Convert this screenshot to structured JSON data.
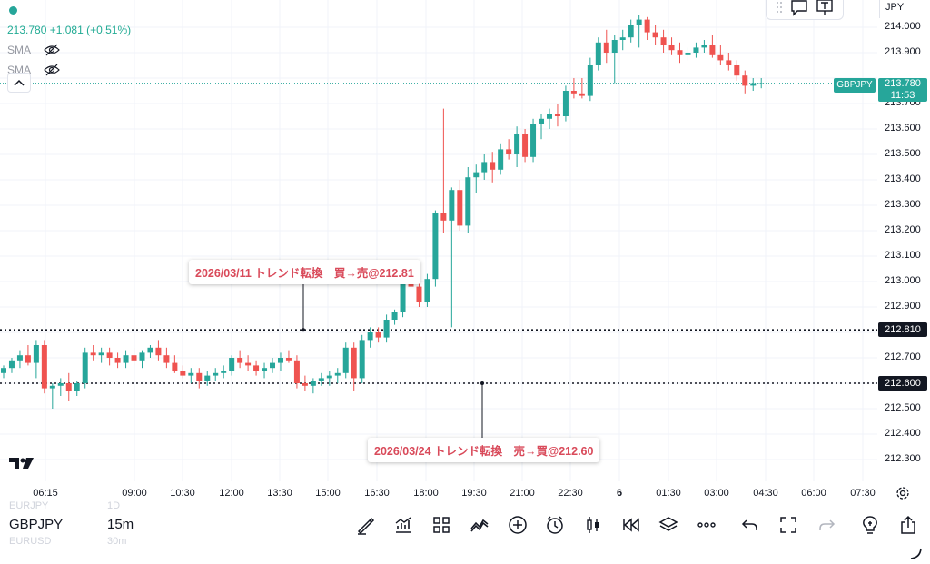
{
  "legend": {
    "price": "213.780",
    "change": "+1.081 (+0.51%)",
    "indicators": [
      {
        "label": "SMA",
        "icon": "eye-off-icon"
      },
      {
        "label": "SMA",
        "icon": "eye-off-icon"
      }
    ]
  },
  "price_axis": {
    "currency": "JPY",
    "ticks": [
      "214.000",
      "213.900",
      "213.700",
      "213.600",
      "213.500",
      "213.400",
      "213.300",
      "213.200",
      "213.100",
      "213.000",
      "212.900",
      "212.700",
      "212.500",
      "212.400",
      "212.300"
    ],
    "current_price": "213.780",
    "countdown": "11:53",
    "symbol_tag": "GBPJPY",
    "level_tags": [
      "212.810",
      "212.600"
    ]
  },
  "time_axis": {
    "ticks": [
      "06:15",
      "09:00",
      "10:30",
      "12:00",
      "13:30",
      "15:00",
      "16:30",
      "18:00",
      "19:30",
      "21:00",
      "22:30",
      "6",
      "01:30",
      "03:00",
      "04:30",
      "06:00",
      "07:30"
    ]
  },
  "annotations": [
    {
      "text": "2026/03/11 トレンド転換　買→売@212.81"
    },
    {
      "text": "2026/03/24 トレンド転換　売→買@212.60"
    }
  ],
  "bottom_bar": {
    "symbol": "GBPJPY",
    "interval": "15m",
    "ghost_above_symbol": "EURJPY",
    "ghost_above_interval": "1D",
    "ghost_below_symbol": "EURUSD",
    "ghost_below_interval": "30m",
    "tools": [
      "brush-icon",
      "indicators-icon",
      "templates-icon",
      "compare-icon",
      "add-icon",
      "alert-icon",
      "candle-type-icon",
      "replay-icon",
      "layers-icon",
      "more-icon",
      "undo-icon",
      "fullscreen-icon",
      "redo-icon",
      "idea-icon",
      "share-icon"
    ]
  },
  "colors": {
    "up": "#26a69a",
    "down": "#ef5350",
    "annotation_text": "#d94a5a"
  },
  "chart_data": {
    "type": "candlestick",
    "symbol": "GBPJPY",
    "interval": "15m",
    "ylim": [
      212.22,
      214.08
    ],
    "levels": [
      212.81,
      212.6,
      213.78
    ],
    "candles": [
      [
        212.64,
        212.67,
        212.62,
        212.66
      ],
      [
        212.66,
        212.7,
        212.64,
        212.69
      ],
      [
        212.69,
        212.73,
        212.66,
        212.71
      ],
      [
        212.71,
        212.75,
        212.67,
        212.68
      ],
      [
        212.68,
        212.77,
        212.62,
        212.75
      ],
      [
        212.75,
        212.77,
        212.56,
        212.58
      ],
      [
        212.58,
        212.6,
        212.5,
        212.59
      ],
      [
        212.59,
        212.62,
        212.55,
        212.6
      ],
      [
        212.6,
        212.64,
        212.53,
        212.57
      ],
      [
        212.57,
        212.61,
        212.55,
        212.6
      ],
      [
        212.6,
        212.74,
        212.58,
        212.72
      ],
      [
        212.72,
        212.75,
        212.69,
        212.71
      ],
      [
        212.71,
        212.74,
        212.68,
        212.72
      ],
      [
        212.72,
        212.74,
        212.67,
        212.7
      ],
      [
        212.7,
        212.72,
        212.66,
        212.68
      ],
      [
        212.68,
        212.73,
        212.66,
        212.71
      ],
      [
        212.71,
        212.74,
        212.67,
        212.69
      ],
      [
        212.69,
        212.73,
        212.66,
        212.72
      ],
      [
        212.72,
        212.75,
        212.7,
        212.74
      ],
      [
        212.74,
        212.77,
        212.69,
        212.71
      ],
      [
        212.71,
        212.74,
        212.66,
        212.68
      ],
      [
        212.68,
        212.71,
        212.64,
        212.65
      ],
      [
        212.65,
        212.67,
        212.62,
        212.63
      ],
      [
        212.63,
        212.66,
        212.6,
        212.64
      ],
      [
        212.64,
        212.66,
        212.58,
        212.61
      ],
      [
        212.61,
        212.65,
        212.59,
        212.63
      ],
      [
        212.63,
        212.66,
        212.61,
        212.64
      ],
      [
        212.64,
        212.67,
        212.62,
        212.65
      ],
      [
        212.65,
        212.71,
        212.63,
        212.7
      ],
      [
        212.7,
        212.73,
        212.66,
        212.68
      ],
      [
        212.68,
        212.71,
        212.65,
        212.67
      ],
      [
        212.67,
        212.69,
        212.63,
        212.65
      ],
      [
        212.65,
        212.68,
        212.62,
        212.66
      ],
      [
        212.66,
        212.7,
        212.64,
        212.68
      ],
      [
        212.68,
        212.72,
        212.65,
        212.7
      ],
      [
        212.7,
        212.73,
        212.68,
        212.69
      ],
      [
        212.69,
        212.71,
        212.58,
        212.6
      ],
      [
        212.6,
        212.63,
        212.57,
        212.59
      ],
      [
        212.59,
        212.62,
        212.56,
        212.61
      ],
      [
        212.61,
        212.64,
        212.59,
        212.62
      ],
      [
        212.62,
        212.65,
        212.59,
        212.63
      ],
      [
        212.63,
        212.66,
        212.6,
        212.64
      ],
      [
        212.64,
        212.76,
        212.62,
        212.74
      ],
      [
        212.74,
        212.76,
        212.57,
        212.62
      ],
      [
        212.62,
        212.79,
        212.6,
        212.77
      ],
      [
        212.77,
        212.82,
        212.74,
        212.8
      ],
      [
        212.8,
        212.82,
        212.76,
        212.78
      ],
      [
        212.78,
        212.87,
        212.76,
        212.85
      ],
      [
        212.85,
        212.89,
        212.83,
        212.88
      ],
      [
        212.88,
        213.02,
        212.86,
        213.0
      ],
      [
        213.0,
        213.03,
        212.94,
        212.98
      ],
      [
        212.98,
        213.0,
        212.9,
        212.92
      ],
      [
        212.92,
        213.03,
        212.9,
        213.01
      ],
      [
        213.01,
        213.28,
        212.98,
        213.27
      ],
      [
        213.27,
        213.68,
        213.19,
        213.24
      ],
      [
        213.24,
        213.37,
        212.82,
        213.36
      ],
      [
        213.36,
        213.4,
        213.2,
        213.22
      ],
      [
        213.22,
        213.45,
        213.19,
        213.41
      ],
      [
        213.41,
        213.46,
        213.35,
        213.43
      ],
      [
        213.43,
        213.5,
        213.4,
        213.47
      ],
      [
        213.47,
        213.51,
        213.39,
        213.44
      ],
      [
        213.44,
        213.54,
        213.42,
        213.52
      ],
      [
        213.52,
        213.56,
        213.48,
        213.5
      ],
      [
        213.5,
        213.61,
        213.45,
        213.58
      ],
      [
        213.58,
        213.6,
        213.47,
        213.49
      ],
      [
        213.49,
        213.64,
        213.47,
        213.62
      ],
      [
        213.62,
        213.66,
        213.56,
        213.64
      ],
      [
        213.64,
        213.68,
        213.6,
        213.66
      ],
      [
        213.66,
        213.7,
        213.61,
        213.65
      ],
      [
        213.65,
        213.77,
        213.63,
        213.75
      ],
      [
        213.75,
        213.8,
        213.72,
        213.74
      ],
      [
        213.74,
        213.8,
        213.72,
        213.73
      ],
      [
        213.73,
        213.88,
        213.71,
        213.85
      ],
      [
        213.85,
        213.96,
        213.83,
        213.94
      ],
      [
        213.94,
        213.99,
        213.86,
        213.9
      ],
      [
        213.9,
        213.97,
        213.78,
        213.95
      ],
      [
        213.95,
        213.99,
        213.91,
        213.96
      ],
      [
        213.96,
        214.03,
        213.94,
        214.01
      ],
      [
        214.01,
        214.05,
        213.92,
        214.03
      ],
      [
        214.03,
        214.04,
        213.95,
        213.98
      ],
      [
        213.98,
        214.01,
        213.93,
        213.96
      ],
      [
        213.96,
        213.99,
        213.9,
        213.93
      ],
      [
        213.93,
        213.96,
        213.89,
        213.91
      ],
      [
        213.91,
        213.94,
        213.86,
        213.89
      ],
      [
        213.89,
        213.92,
        213.87,
        213.9
      ],
      [
        213.9,
        213.94,
        213.88,
        213.92
      ],
      [
        213.92,
        213.95,
        213.9,
        213.93
      ],
      [
        213.93,
        213.97,
        213.88,
        213.89
      ],
      [
        213.89,
        213.93,
        213.85,
        213.87
      ],
      [
        213.87,
        213.9,
        213.83,
        213.85
      ],
      [
        213.85,
        213.87,
        213.79,
        213.81
      ],
      [
        213.81,
        213.83,
        213.74,
        213.77
      ],
      [
        213.77,
        213.8,
        213.75,
        213.78
      ],
      [
        213.78,
        213.8,
        213.76,
        213.78
      ]
    ]
  }
}
